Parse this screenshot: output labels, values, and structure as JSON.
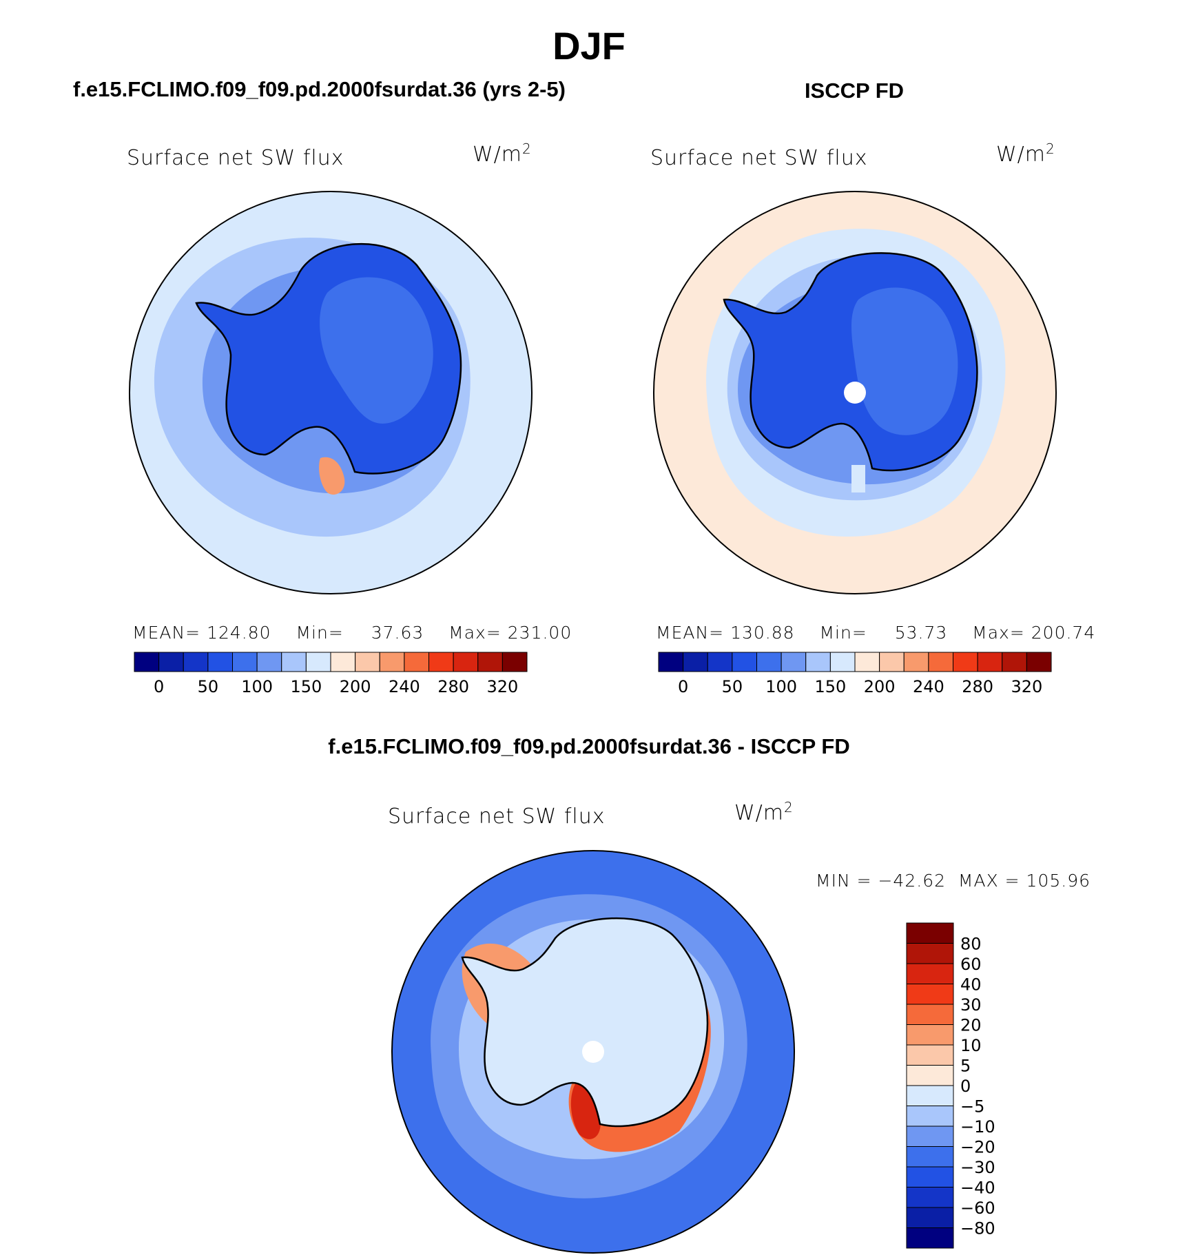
{
  "season": "DJF",
  "panels": {
    "model": {
      "header": "f.e15.FCLIMO.f09_f09.pd.2000fsurdat.36 (yrs 2-5)",
      "variable": "Surface net SW flux",
      "units_base": "W/m",
      "units_exp": "2",
      "stats": {
        "mean_label": "MEAN=",
        "mean": "124.80",
        "min_label": "Min=",
        "min": "37.63",
        "max_label": "Max=",
        "max": "231.00"
      }
    },
    "obs": {
      "header": "ISCCP FD",
      "variable": "Surface net SW flux",
      "units_base": "W/m",
      "units_exp": "2",
      "stats": {
        "mean_label": "MEAN=",
        "mean": "130.88",
        "min_label": "Min=",
        "min": "53.73",
        "max_label": "Max=",
        "max": "200.74"
      }
    },
    "diff": {
      "header": "f.e15.FCLIMO.f09_f09.pd.2000fsurdat.36 - ISCCP FD",
      "variable": "Surface net SW flux",
      "units_base": "W/m",
      "units_exp": "2",
      "range_text": "MIN = −42.62  MAX = 105.96"
    }
  },
  "chart_data": [
    {
      "type": "heatmap",
      "title": "Surface net SW flux",
      "projection": "south-polar stereographic",
      "units": "W/m2",
      "mean": 124.8,
      "min": 37.63,
      "max": 231.0,
      "colorbar": {
        "tick_labels": [
          "0",
          "50",
          "100",
          "150",
          "200",
          "240",
          "280",
          "320"
        ],
        "colors": [
          "#000080",
          "#0a1fa6",
          "#1435c8",
          "#2252e4",
          "#3d70ec",
          "#6f97f2",
          "#a9c6fb",
          "#d7e9fd",
          "#fde9d9",
          "#fbc8aa",
          "#f89a6c",
          "#f56a3a",
          "#f03a17",
          "#d82510",
          "#b01508",
          "#7a0000"
        ]
      }
    },
    {
      "type": "heatmap",
      "title": "Surface net SW flux",
      "projection": "south-polar stereographic",
      "units": "W/m2",
      "mean": 130.88,
      "min": 53.73,
      "max": 200.74,
      "colorbar": {
        "tick_labels": [
          "0",
          "50",
          "100",
          "150",
          "200",
          "240",
          "280",
          "320"
        ],
        "colors": [
          "#000080",
          "#0a1fa6",
          "#1435c8",
          "#2252e4",
          "#3d70ec",
          "#6f97f2",
          "#a9c6fb",
          "#d7e9fd",
          "#fde9d9",
          "#fbc8aa",
          "#f89a6c",
          "#f56a3a",
          "#f03a17",
          "#d82510",
          "#b01508",
          "#7a0000"
        ]
      }
    },
    {
      "type": "heatmap",
      "title": "Surface net SW flux",
      "projection": "south-polar stereographic",
      "units": "W/m2",
      "min": -42.62,
      "max": 105.96,
      "colorbar": {
        "orientation": "vertical",
        "tick_labels": [
          "80",
          "60",
          "40",
          "30",
          "20",
          "10",
          "5",
          "0",
          "−5",
          "−10",
          "−20",
          "−30",
          "−40",
          "−60",
          "−80"
        ],
        "colors": [
          "#7a0000",
          "#b01508",
          "#d82510",
          "#f03a17",
          "#f56a3a",
          "#f89a6c",
          "#fbc8aa",
          "#fde9d9",
          "#d7e9fd",
          "#a9c6fb",
          "#6f97f2",
          "#3d70ec",
          "#2252e4",
          "#1435c8",
          "#0a1fa6",
          "#000080"
        ]
      }
    }
  ]
}
